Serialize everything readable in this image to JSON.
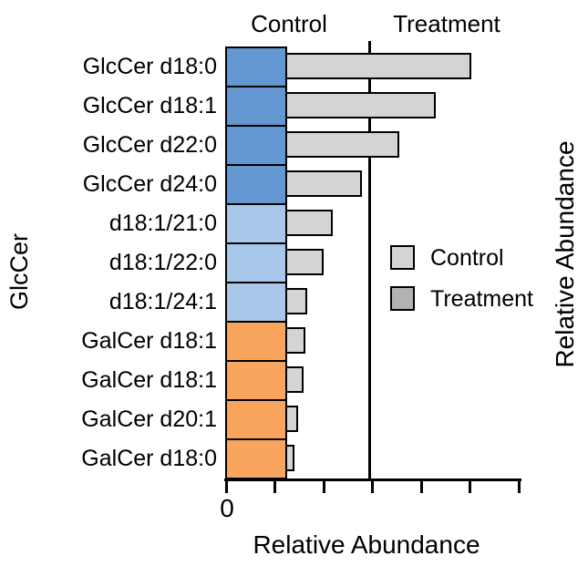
{
  "headers": {
    "control": "Control",
    "treatment": "Treatment"
  },
  "axes": {
    "left_label": "GlcCer",
    "right_label": "Relative Abundance",
    "bottom_label": "Relative Abundance",
    "zero_label": "0"
  },
  "legend": {
    "items": [
      {
        "label": "Control",
        "color": "#d4d4d4"
      },
      {
        "label": "Treatment",
        "color": "#b2b2b2"
      }
    ]
  },
  "chart_data": {
    "type": "bar",
    "orientation": "horizontal",
    "title": "",
    "xlabel": "Relative Abundance",
    "ylabel_left": "GlcCer",
    "ylabel_right": "Relative Abundance",
    "top_region_labels": [
      "Control",
      "Treatment"
    ],
    "categories": [
      "GlcCer d18:0",
      "GlcCer d18:1",
      "GlcCer d22:0",
      "GlcCer d24:0",
      "d18:1/21:0",
      "d18:1/22:0",
      "d18:1/24:1",
      "GalCer d18:1",
      "GalCer d18:1",
      "GalCer d20:1",
      "GalCer d18:0"
    ],
    "series": [
      {
        "name": "Control",
        "values": [
          5.03,
          4.3,
          3.55,
          2.79,
          2.19,
          2.0,
          1.66,
          1.63,
          1.59,
          1.48,
          1.4
        ]
      }
    ],
    "bar_base": 1.21,
    "bar_fill": "#d4d4d4",
    "category_block_colors": [
      "#6397d1",
      "#6397d1",
      "#6397d1",
      "#6397d1",
      "#a8c8ea",
      "#a8c8ea",
      "#a8c8ea",
      "#f9a55e",
      "#f9a55e",
      "#f9a55e",
      "#f9a55e"
    ],
    "xlim": [
      0,
      6.1
    ],
    "x_ticks": [
      0,
      1,
      2,
      3,
      4,
      5,
      6
    ],
    "x_tick_labels": [
      "0",
      "",
      "",
      "",
      "",
      "",
      ""
    ],
    "divider_x": 2.95,
    "grid": false,
    "legend_entries": [
      "Control",
      "Treatment"
    ],
    "legend_position": "center-right"
  }
}
